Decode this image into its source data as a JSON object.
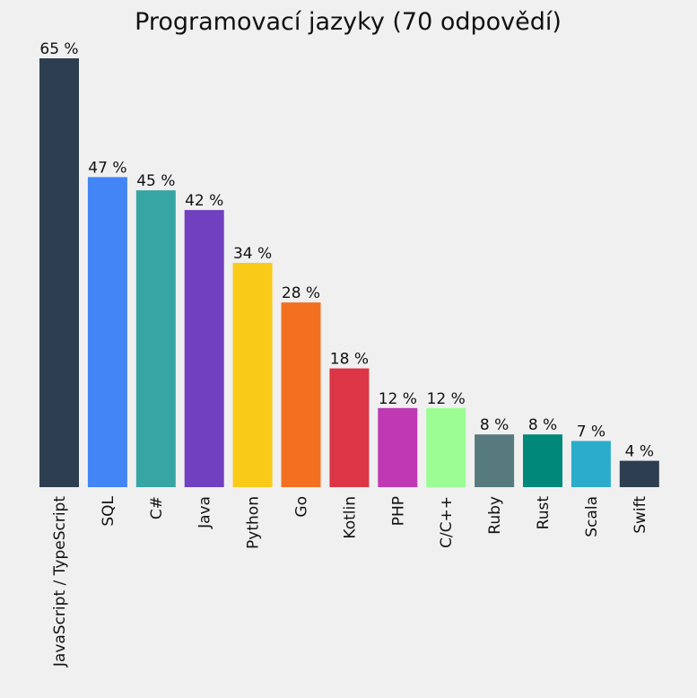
{
  "chart_data": {
    "type": "bar",
    "title": "Programovací jazyky (70 odpovědí)",
    "xlabel": "",
    "ylabel": "",
    "ylim": [
      0,
      65
    ],
    "grid": false,
    "legend": "none",
    "categories": [
      "JavaScript / TypeScript",
      "SQL",
      "C#",
      "Java",
      "Python",
      "Go",
      "Kotlin",
      "PHP",
      "C/C++",
      "Ruby",
      "Rust",
      "Scala",
      "Swift"
    ],
    "values": [
      65,
      47,
      45,
      42,
      34,
      28,
      18,
      12,
      12,
      8,
      8,
      7,
      4
    ],
    "value_labels": [
      "65 %",
      "47 %",
      "45 %",
      "42 %",
      "34 %",
      "28 %",
      "18 %",
      "12 %",
      "12 %",
      "8 %",
      "8 %",
      "7 %",
      "4 %"
    ],
    "colors": [
      "#2d3e50",
      "#4285f4",
      "#37a5a3",
      "#7140c0",
      "#f9ca18",
      "#f37021",
      "#dc3545",
      "#c039b4",
      "#9bfd94",
      "#567a7d",
      "#00897b",
      "#2caccb",
      "#2d3e50"
    ]
  }
}
